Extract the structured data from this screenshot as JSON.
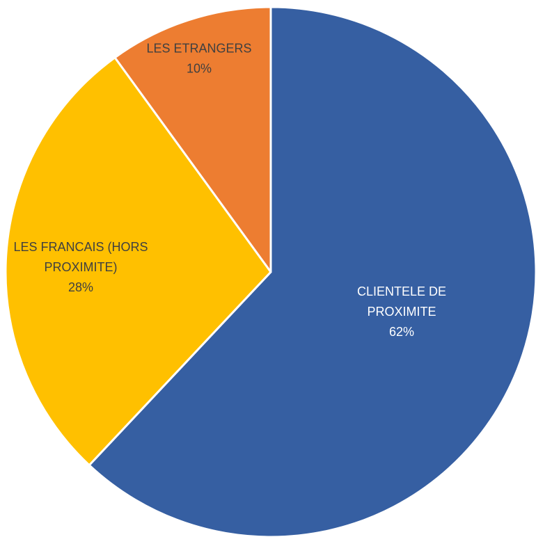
{
  "chart_data": {
    "type": "pie",
    "title": "",
    "start_angle_deg": 0,
    "direction": "clockwise",
    "legend": "none",
    "slices": [
      {
        "label_lines": [
          "CLIENTELE DE",
          "PROXIMITE"
        ],
        "value": 62,
        "value_label": "62%",
        "color": "#365FA2",
        "label_color": "#ffffff"
      },
      {
        "label_lines": [
          "LES FRANCAIS (HORS",
          "PROXIMITE)"
        ],
        "value": 28,
        "value_label": "28%",
        "color": "#FFC000",
        "label_color": "#404040"
      },
      {
        "label_lines": [
          "LES ETRANGERS"
        ],
        "value": 10,
        "value_label": "10%",
        "color": "#ED7D31",
        "label_color": "#404040"
      }
    ]
  }
}
